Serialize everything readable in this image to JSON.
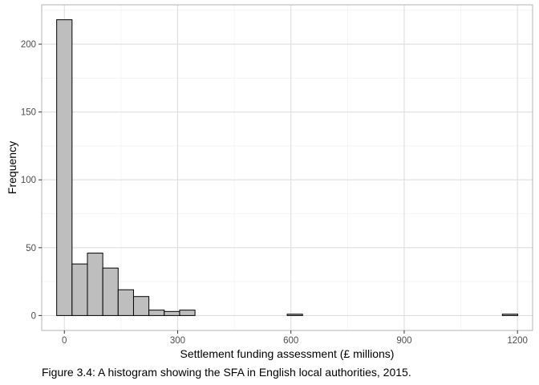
{
  "chart_data": {
    "type": "bar",
    "subtype": "histogram",
    "xlabel": "Settlement funding assessment (£ millions)",
    "ylabel": "Frequency",
    "xlim": [
      -60,
      1240
    ],
    "ylim": [
      -11,
      229
    ],
    "x_ticks": [
      0,
      300,
      600,
      900,
      1200
    ],
    "x_tick_labels": [
      "0",
      "300",
      "600",
      "900",
      "1200"
    ],
    "y_ticks": [
      0,
      50,
      100,
      150,
      200
    ],
    "y_tick_labels": [
      "0",
      "50",
      "100",
      "150",
      "200"
    ],
    "bin_width": 40.7,
    "bins": [
      {
        "start": -20.35,
        "count": 218
      },
      {
        "start": 20.35,
        "count": 38
      },
      {
        "start": 61.05,
        "count": 46
      },
      {
        "start": 101.75,
        "count": 35
      },
      {
        "start": 142.45,
        "count": 19
      },
      {
        "start": 183.15,
        "count": 14
      },
      {
        "start": 223.85,
        "count": 4
      },
      {
        "start": 264.55,
        "count": 3
      },
      {
        "start": 305.25,
        "count": 4
      },
      {
        "start": 345.95,
        "count": 0
      },
      {
        "start": 386.65,
        "count": 0
      },
      {
        "start": 427.35,
        "count": 0
      },
      {
        "start": 468.05,
        "count": 0
      },
      {
        "start": 508.75,
        "count": 0
      },
      {
        "start": 549.45,
        "count": 0
      },
      {
        "start": 590.15,
        "count": 1
      },
      {
        "start": 630.85,
        "count": 0
      },
      {
        "start": 671.55,
        "count": 0
      },
      {
        "start": 712.25,
        "count": 0
      },
      {
        "start": 752.95,
        "count": 0
      },
      {
        "start": 793.65,
        "count": 0
      },
      {
        "start": 834.35,
        "count": 0
      },
      {
        "start": 875.05,
        "count": 0
      },
      {
        "start": 915.75,
        "count": 0
      },
      {
        "start": 956.45,
        "count": 0
      },
      {
        "start": 997.15,
        "count": 0
      },
      {
        "start": 1037.85,
        "count": 0
      },
      {
        "start": 1078.55,
        "count": 0
      },
      {
        "start": 1119.25,
        "count": 0
      },
      {
        "start": 1159.95,
        "count": 1
      }
    ],
    "grid": true,
    "colors": {
      "bar_fill": "#bebebe",
      "bar_stroke": "#000000",
      "grid_major": "#dedede",
      "grid_minor": "#eeeeee",
      "panel_border": "#b3b3b3"
    }
  },
  "caption": "Figure 3.4: A histogram showing the SFA in English local authorities, 2015."
}
